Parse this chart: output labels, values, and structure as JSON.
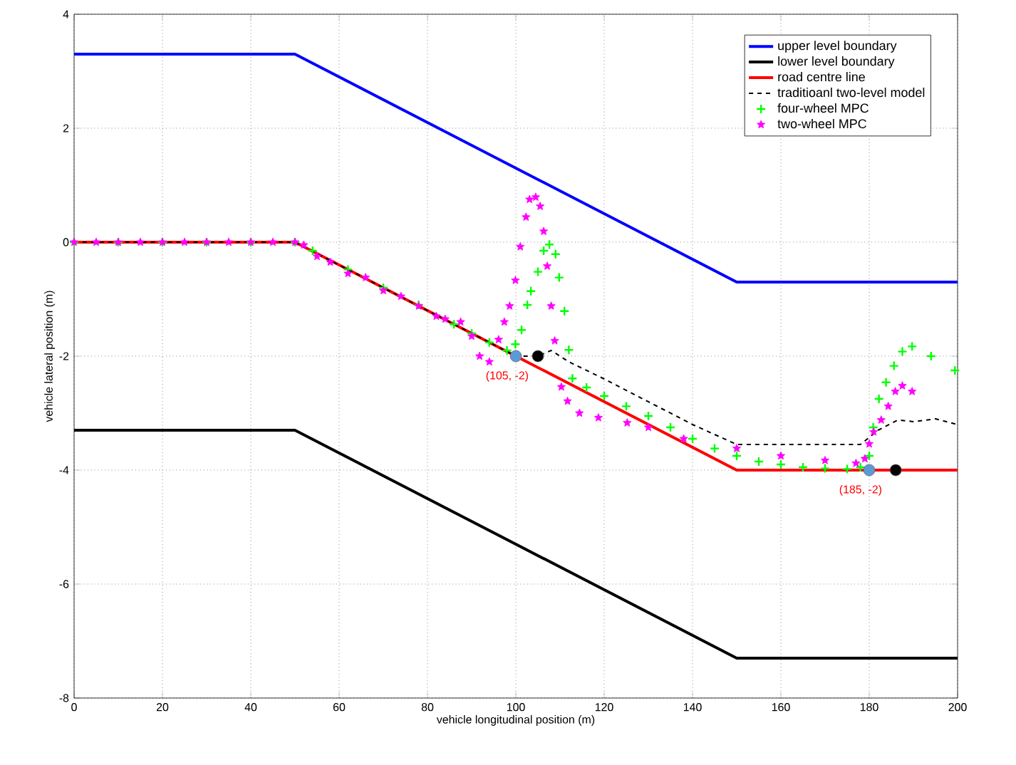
{
  "chart_data": {
    "type": "line",
    "xlabel": "vehicle longitudinal position (m)",
    "ylabel": "vehicle lateral position (m)",
    "xlim": [
      0,
      200
    ],
    "ylim": [
      -8,
      4
    ],
    "xticks": [
      0,
      20,
      40,
      60,
      80,
      100,
      120,
      140,
      160,
      180,
      200
    ],
    "yticks": [
      -8,
      -6,
      -4,
      -2,
      0,
      2,
      4
    ],
    "grid": true,
    "legend": "top right",
    "series": [
      {
        "name": "upper level boundary",
        "color": "#0000ff",
        "line_style": "solid",
        "marker": "none",
        "x": [
          0,
          50,
          150,
          200
        ],
        "values": [
          3.3,
          3.3,
          -0.7,
          -0.7
        ]
      },
      {
        "name": "lower level boundary",
        "color": "#000000",
        "line_style": "solid",
        "marker": "none",
        "x": [
          0,
          50,
          150,
          200
        ],
        "values": [
          -3.3,
          -3.3,
          -7.3,
          -7.3
        ]
      },
      {
        "name": "road centre line",
        "color": "#ff0000",
        "line_style": "solid",
        "marker": "none",
        "x": [
          0,
          50,
          150,
          200
        ],
        "values": [
          0,
          0,
          -4,
          -4
        ]
      },
      {
        "name": "traditioanl two-level model",
        "color": "#000000",
        "line_style": "dashed",
        "marker": "none",
        "x": [
          0,
          50,
          100,
          105,
          108,
          112,
          120,
          130,
          140,
          150,
          160,
          170,
          178,
          182,
          186.5,
          190,
          195,
          200
        ],
        "values": [
          0,
          0,
          -2,
          -2,
          -1.9,
          -2.1,
          -2.4,
          -2.8,
          -3.2,
          -3.55,
          -3.55,
          -3.55,
          -3.55,
          -3.3,
          -3.12,
          -3.15,
          -3.1,
          -3.2
        ]
      },
      {
        "name": "four-wheel MPC",
        "type": "scatter",
        "color": "#00ff00",
        "marker": "cross",
        "x": [
          0,
          10,
          20,
          30,
          40,
          50,
          54,
          58,
          62,
          66,
          70,
          74,
          78,
          82,
          86,
          90,
          94,
          98,
          99.9,
          101.3,
          102.6,
          103.4,
          105,
          106.3,
          107.6,
          109,
          109.8,
          111,
          112,
          112.8,
          116,
          120,
          125,
          130,
          135,
          140,
          145,
          150,
          155,
          160,
          165,
          170,
          175,
          178,
          180,
          180.9,
          182.2,
          183.8,
          185.6,
          187.5,
          189.7,
          194,
          199.4
        ],
        "values": [
          0,
          0,
          0,
          0,
          0,
          0,
          -0.15,
          null,
          -0.48,
          null,
          -0.8,
          null,
          -1.1,
          null,
          -1.44,
          -1.6,
          -1.76,
          -1.9,
          -1.79,
          -1.54,
          -1.1,
          -0.86,
          -0.52,
          -0.15,
          -0.04,
          -0.21,
          -0.62,
          -1.21,
          -1.89,
          -2.39,
          -2.55,
          -2.7,
          -2.88,
          -3.05,
          -3.25,
          -3.45,
          -3.62,
          -3.75,
          -3.85,
          -3.9,
          -3.95,
          -3.97,
          -3.98,
          -3.95,
          -3.75,
          -3.25,
          -2.75,
          -2.46,
          -2.17,
          -1.92,
          -1.83,
          -2,
          -2.25
        ]
      },
      {
        "name": "two-wheel MPC",
        "type": "scatter",
        "color": "#ff00ff",
        "marker": "star",
        "x": [
          0,
          5,
          10,
          15,
          20,
          25,
          30,
          35,
          40,
          45,
          50,
          52,
          55,
          58,
          62,
          66,
          70,
          74,
          78,
          82,
          84,
          87.5,
          90,
          91.8,
          94,
          96.1,
          97.4,
          98.6,
          99.9,
          101,
          102.3,
          103.1,
          104.5,
          105.5,
          106.3,
          107.1,
          108,
          108.8,
          110.3,
          111.7,
          114.4,
          118.7,
          125.2,
          130,
          138,
          150,
          160,
          170,
          177,
          179,
          180,
          181,
          182.7,
          184.3,
          185.9,
          187.5,
          189.7
        ],
        "values": [
          0,
          0,
          0,
          0,
          0,
          0,
          0,
          0,
          0,
          0,
          0,
          -0.05,
          -0.25,
          -0.35,
          -0.55,
          -0.62,
          -0.85,
          -0.95,
          -1.12,
          -1.3,
          -1.35,
          -1.4,
          -1.65,
          -2.0,
          -2.1,
          -1.71,
          -1.4,
          -1.12,
          -0.67,
          -0.08,
          0.44,
          0.75,
          0.79,
          0.63,
          0.19,
          -0.42,
          -1.12,
          -1.73,
          -2.54,
          -2.79,
          -3.0,
          -3.08,
          -3.17,
          -3.25,
          -3.45,
          -3.62,
          -3.75,
          -3.83,
          -3.88,
          -3.8,
          -3.54,
          -3.33,
          -3.12,
          -2.88,
          -2.62,
          -2.52,
          -2.62
        ]
      },
      {
        "type": "scatter",
        "color": "#5b9bd5",
        "marker": "circle",
        "x": [
          100,
          180
        ],
        "values": [
          -2,
          -4
        ]
      },
      {
        "type": "scatter",
        "color": "#000000",
        "marker": "circle",
        "x": [
          105,
          186
        ],
        "values": [
          -2,
          -4
        ]
      }
    ],
    "annotations": [
      {
        "text": "(105, -2)",
        "x": 105,
        "y": -2
      },
      {
        "text": "(185, -2)",
        "x": 185,
        "y": -4
      }
    ]
  }
}
